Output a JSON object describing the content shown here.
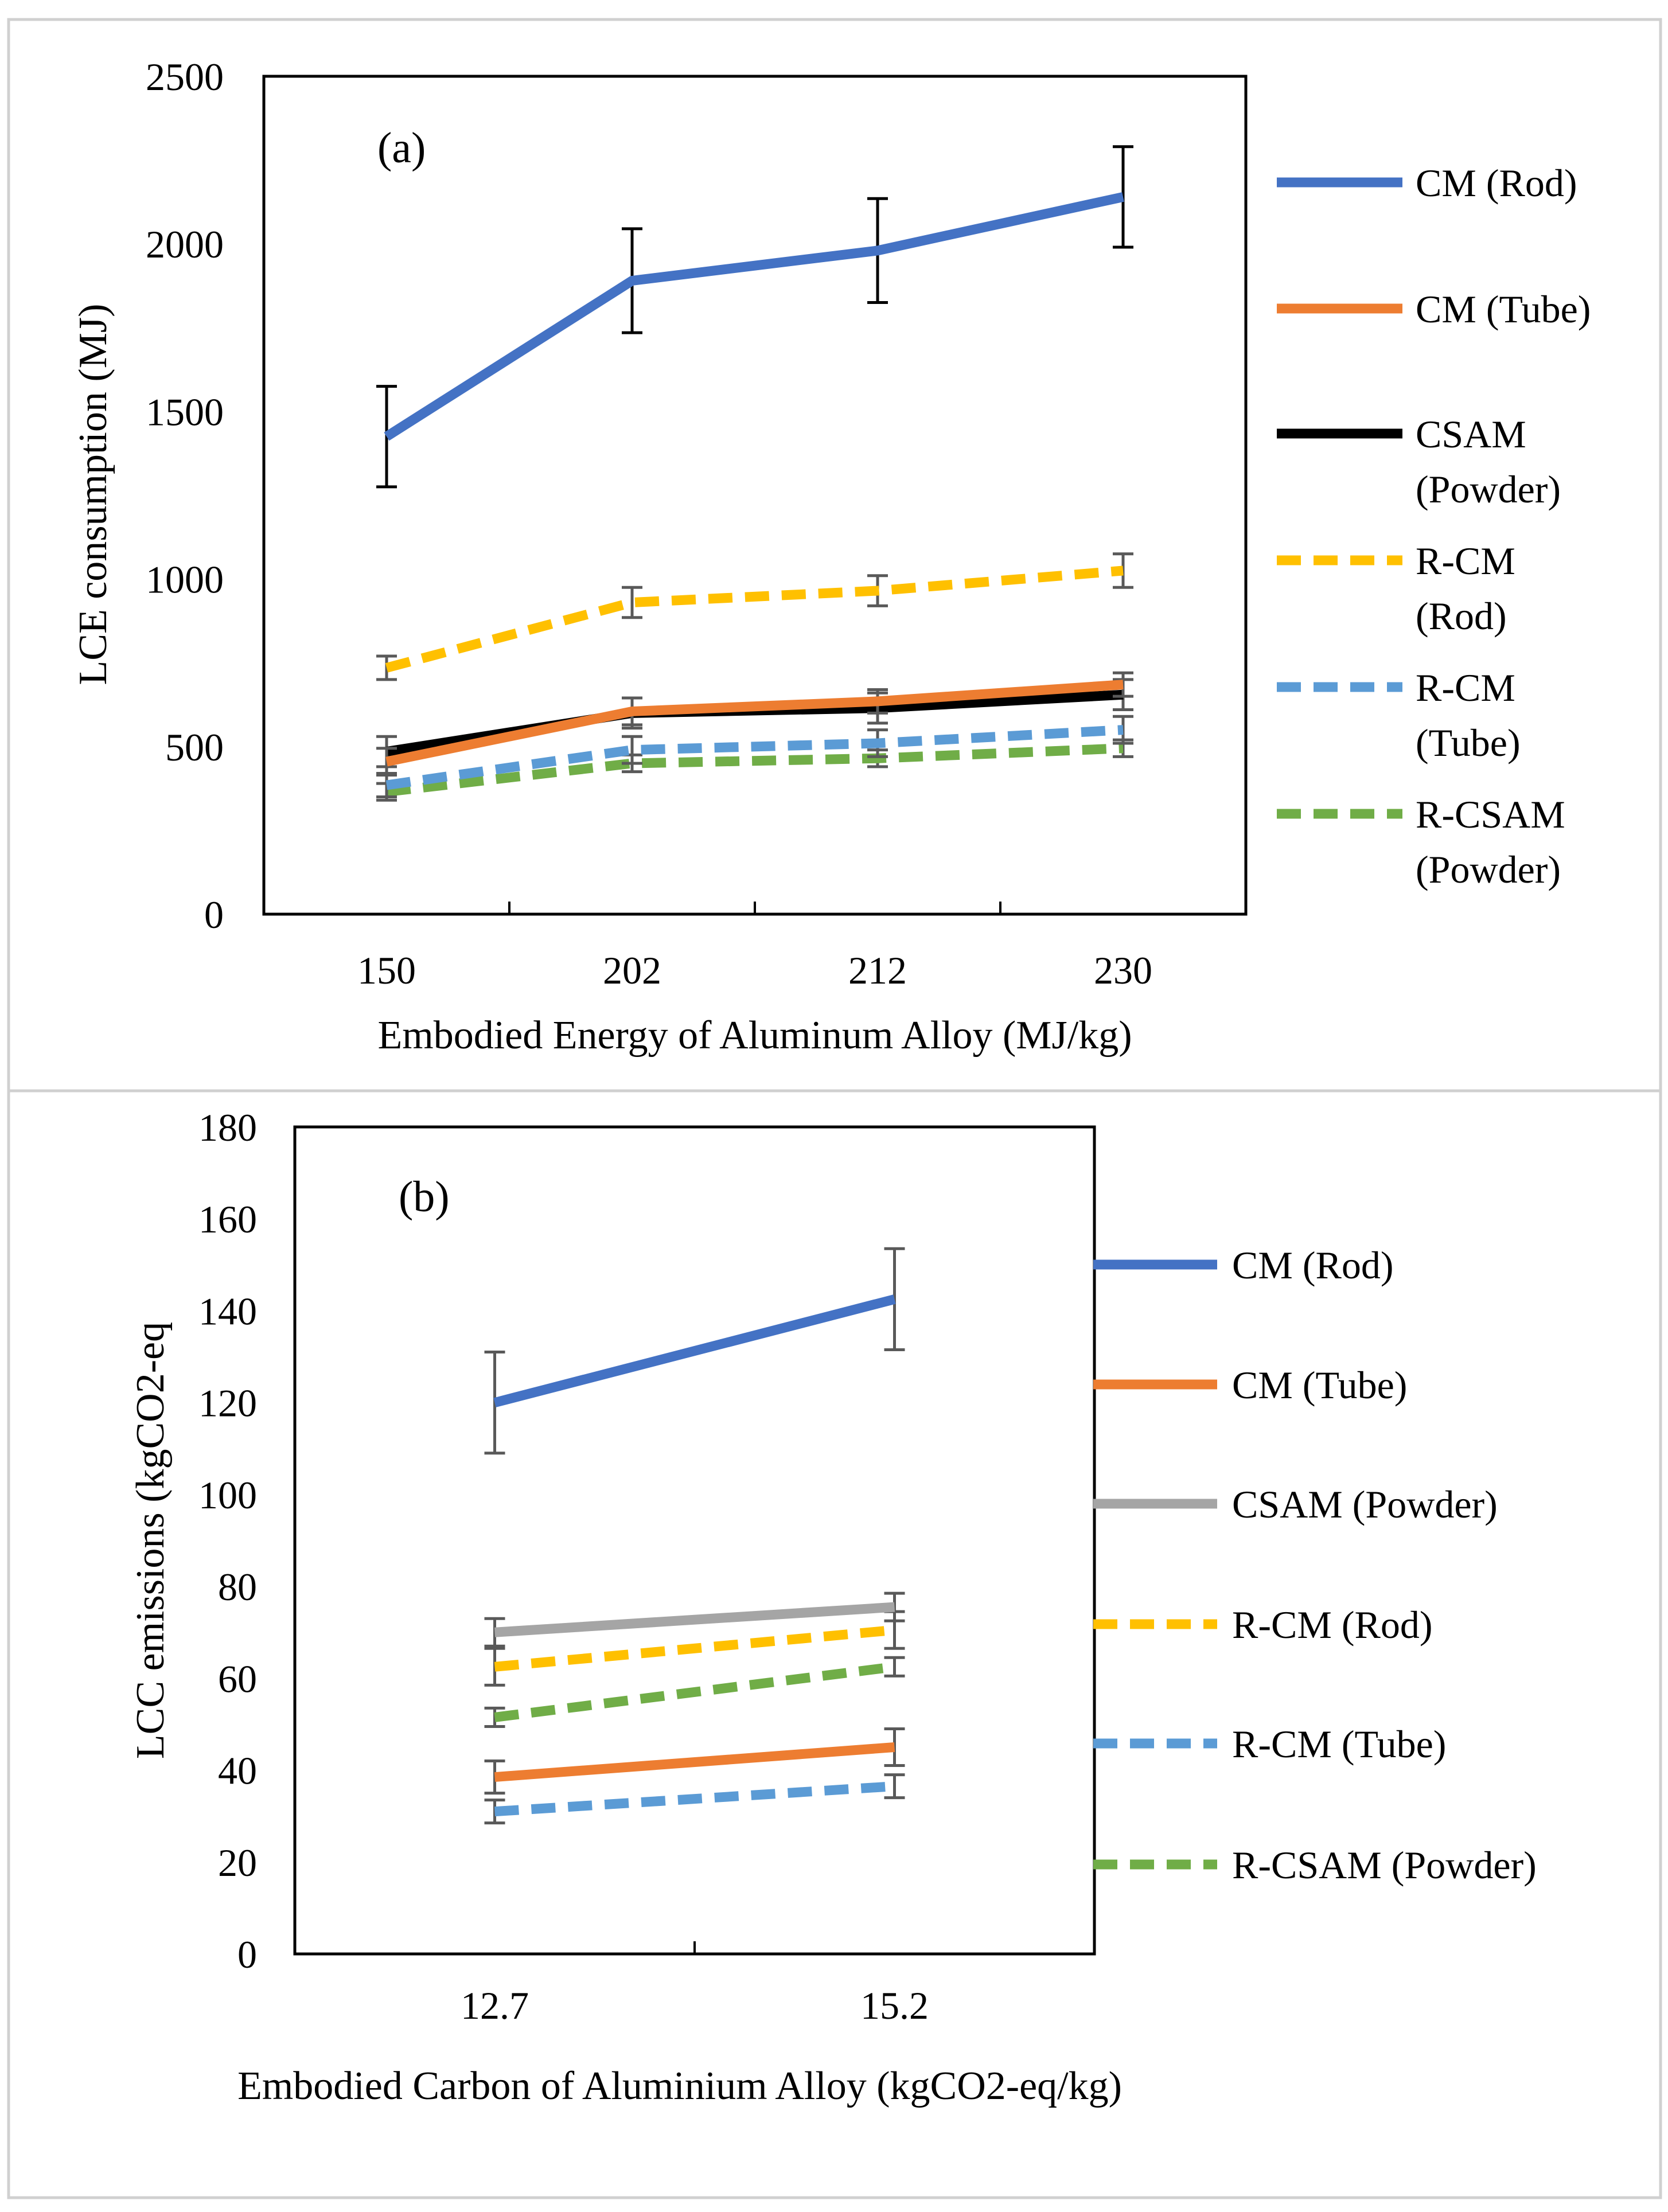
{
  "chart_data": [
    {
      "type": "line",
      "panel_label": "(a)",
      "xlabel": "Embodied Energy of Aluminum Alloy (MJ/kg)",
      "ylabel": "LCE consumption (MJ)",
      "categories": [
        "150",
        "202",
        "212",
        "230"
      ],
      "ylim": [
        0,
        2500
      ],
      "yticks": [
        "0",
        "500",
        "1000",
        "1500",
        "2000",
        "2500"
      ],
      "grid": false,
      "legend_position": "right",
      "series": [
        {
          "name": "CM (Rod)",
          "values": [
            1425,
            1890,
            1980,
            2140
          ],
          "error": [
            150,
            155,
            155,
            150
          ],
          "color": "#4472C4",
          "dashed": false,
          "error_color": "#000000"
        },
        {
          "name": "CM (Tube)",
          "values": [
            455,
            605,
            635,
            685
          ],
          "error": [
            40,
            40,
            35,
            35
          ],
          "color": "#ED7D31",
          "dashed": false,
          "error_color": "#595959"
        },
        {
          "name": "CSAM (Powder)",
          "values": [
            485,
            600,
            615,
            655
          ],
          "error": [
            45,
            45,
            45,
            45
          ],
          "color": "#000000",
          "dashed": false,
          "error_color": "#595959"
        },
        {
          "name": "R-CM (Rod)",
          "values": [
            735,
            930,
            965,
            1025
          ],
          "error": [
            35,
            45,
            45,
            50
          ],
          "color": "#FFC000",
          "dashed": true,
          "error_color": "#595959"
        },
        {
          "name": "R-CM (Tube)",
          "values": [
            385,
            490,
            510,
            550
          ],
          "error": [
            35,
            40,
            40,
            40
          ],
          "color": "#5B9BD5",
          "dashed": true,
          "error_color": "#595959"
        },
        {
          "name": "R-CSAM (Powder)",
          "values": [
            365,
            450,
            465,
            495
          ],
          "error": [
            25,
            25,
            25,
            25
          ],
          "color": "#70AD47",
          "dashed": true,
          "error_color": "#595959"
        }
      ],
      "legend_labels": [
        [
          "CM (Rod)"
        ],
        [
          "CM (Tube)"
        ],
        [
          "CSAM",
          "(Powder)"
        ],
        [
          "R-CM",
          "(Rod)"
        ],
        [
          "R-CM",
          "(Tube)"
        ],
        [
          "R-CSAM",
          "(Powder)"
        ]
      ]
    },
    {
      "type": "line",
      "panel_label": "(b)",
      "xlabel": "Embodied Carbon of Aluminium Alloy (kgCO2-eq/kg)",
      "ylabel": "LCC emissions (kgCO2-eq",
      "categories": [
        "12.7",
        "15.2"
      ],
      "ylim": [
        0,
        180
      ],
      "yticks": [
        "0",
        "20",
        "40",
        "60",
        "80",
        "100",
        "120",
        "140",
        "160",
        "180"
      ],
      "grid": false,
      "legend_position": "right",
      "series": [
        {
          "name": "CM (Rod)",
          "values": [
            120,
            142.5
          ],
          "error": [
            11,
            11
          ],
          "color": "#4472C4",
          "dashed": false,
          "error_color": "#595959"
        },
        {
          "name": "CM (Tube)",
          "values": [
            38.5,
            45
          ],
          "error": [
            3.5,
            4
          ],
          "color": "#ED7D31",
          "dashed": false,
          "error_color": "#595959"
        },
        {
          "name": "CSAM (Powder)",
          "values": [
            70,
            75.5
          ],
          "error": [
            3,
            3
          ],
          "color": "#A5A5A5",
          "dashed": false,
          "error_color": "#595959"
        },
        {
          "name": "R-CM (Rod)",
          "values": [
            62.5,
            70.5
          ],
          "error": [
            4,
            4
          ],
          "color": "#FFC000",
          "dashed": true,
          "error_color": "#595959"
        },
        {
          "name": "R-CM (Tube)",
          "values": [
            31,
            36.5
          ],
          "error": [
            2.5,
            2.5
          ],
          "color": "#5B9BD5",
          "dashed": true,
          "error_color": "#595959"
        },
        {
          "name": "R-CSAM (Powder)",
          "values": [
            51.5,
            62.5
          ],
          "error": [
            2,
            2
          ],
          "color": "#70AD47",
          "dashed": true,
          "error_color": "#595959"
        }
      ],
      "legend_labels": [
        [
          "CM (Rod)"
        ],
        [
          "CM (Tube)"
        ],
        [
          "CSAM (Powder)"
        ],
        [
          "R-CM (Rod)"
        ],
        [
          "R-CM (Tube)"
        ],
        [
          "R-CSAM (Powder)"
        ]
      ]
    }
  ]
}
